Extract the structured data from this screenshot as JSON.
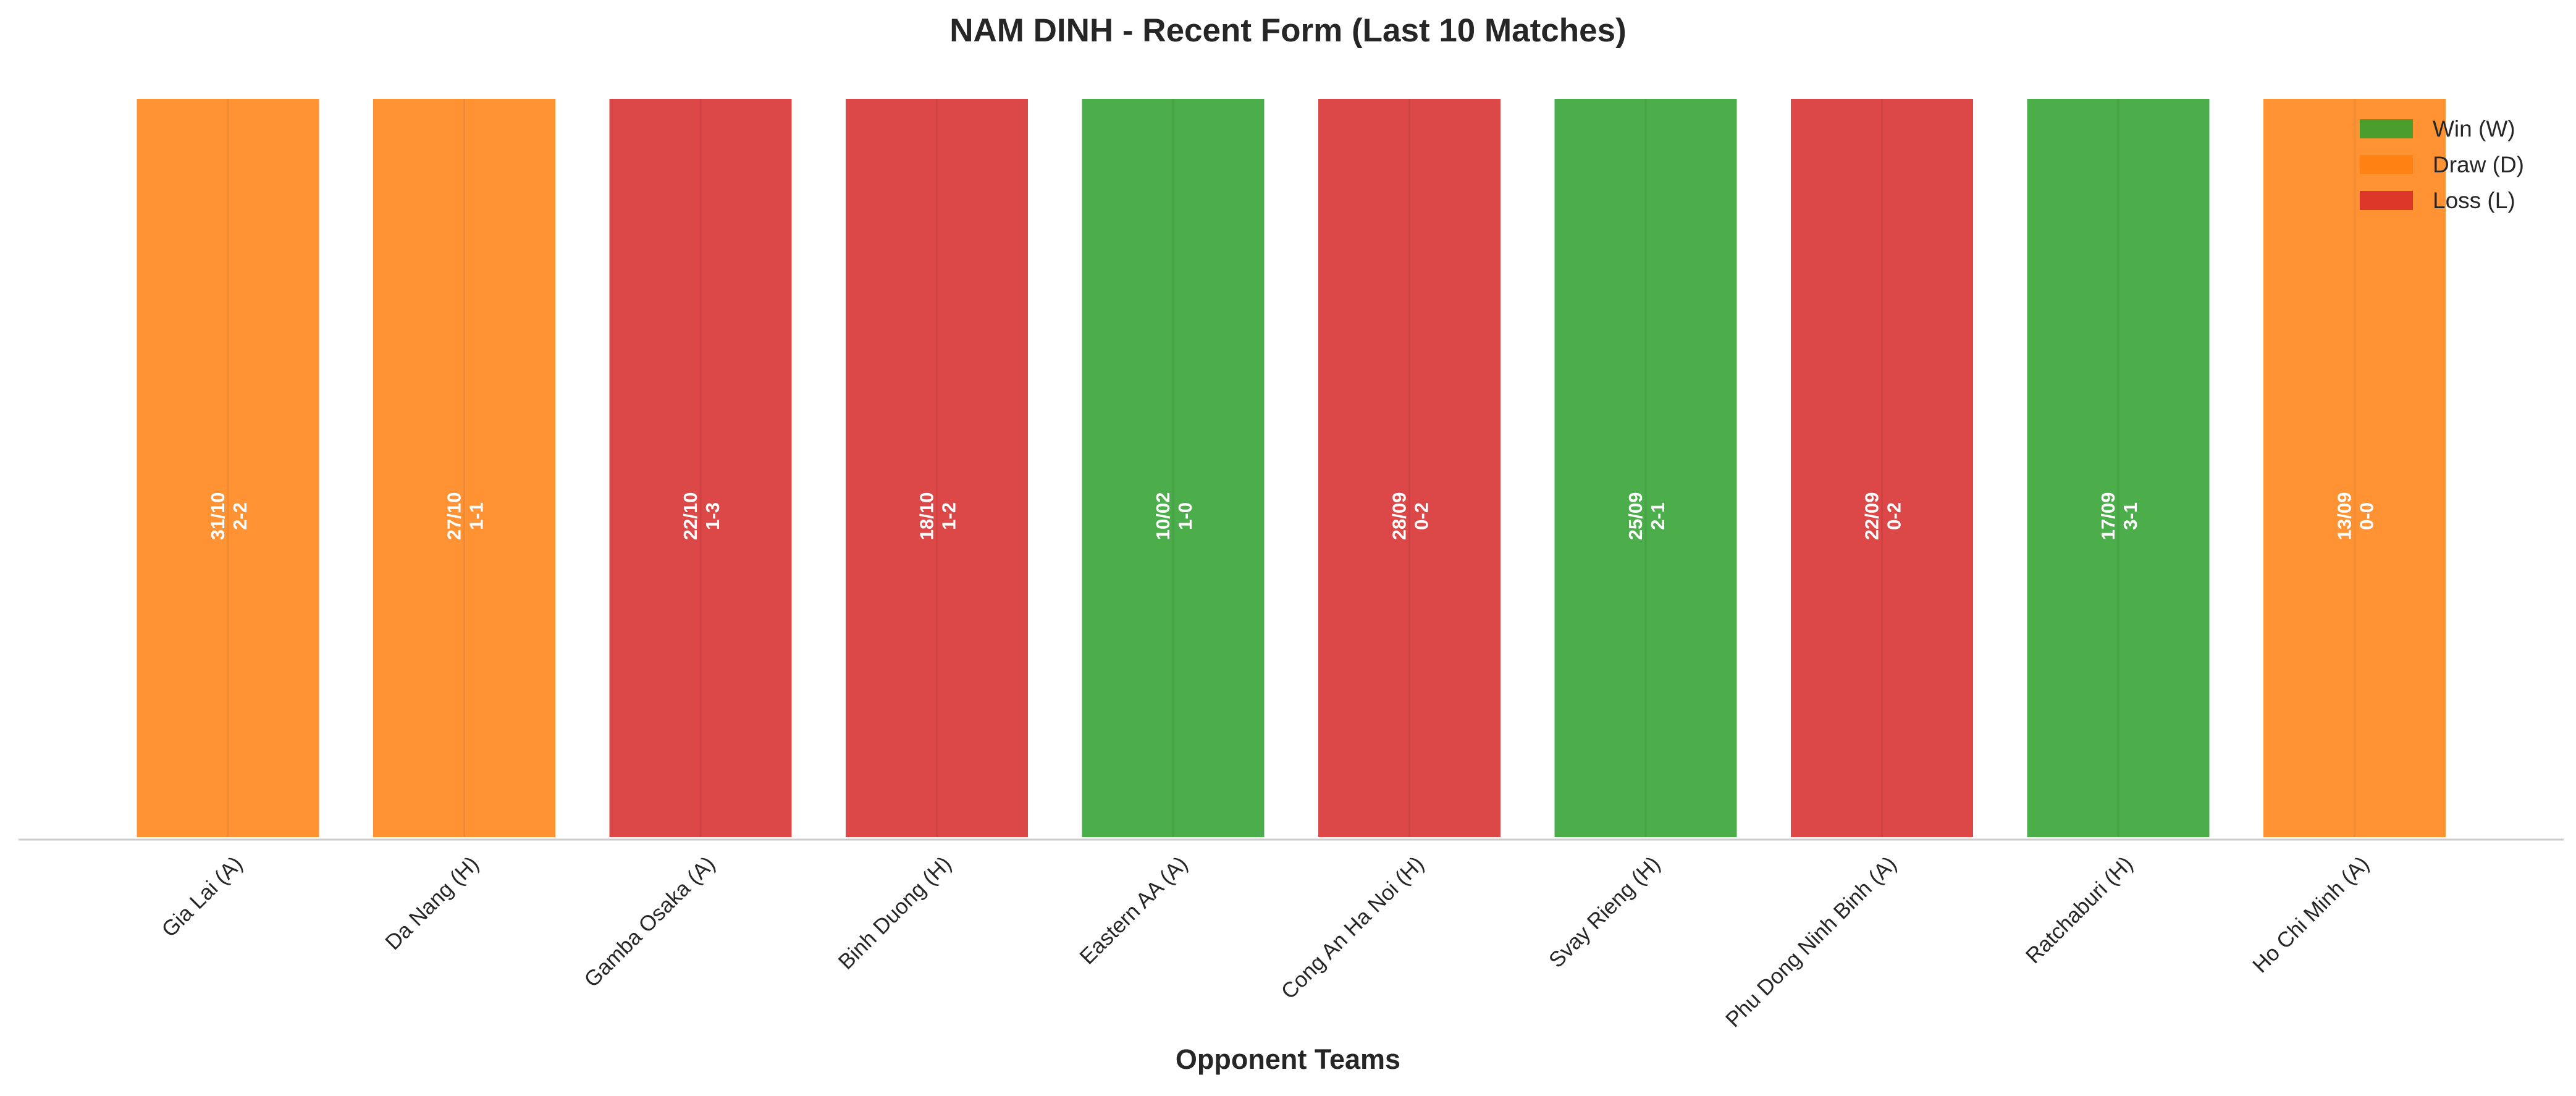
{
  "chart_data": {
    "type": "bar",
    "title": "NAM DINH - Recent Form (Last 10 Matches)",
    "xlabel": "Opponent Teams",
    "ylabel": "",
    "ylim": [
      0,
      1
    ],
    "grid": false,
    "legend_position": "top-right",
    "categories": [
      "Gia Lai (A)",
      "Da Nang (H)",
      "Gamba Osaka (A)",
      "Binh Duong (H)",
      "Eastern AA (A)",
      "Cong An Ha Noi (H)",
      "Svay Rieng (H)",
      "Phu Dong Ninh Binh (A)",
      "Ratchaburi (H)",
      "Ho Chi Minh (A)"
    ],
    "values": [
      1,
      1,
      1,
      1,
      1,
      1,
      1,
      1,
      1,
      1
    ],
    "results": [
      "D",
      "D",
      "L",
      "L",
      "W",
      "L",
      "W",
      "L",
      "W",
      "D"
    ],
    "dates": [
      "31/10",
      "27/10",
      "22/10",
      "18/10",
      "10/02",
      "28/09",
      "25/09",
      "22/09",
      "17/09",
      "13/09"
    ],
    "scores": [
      "2-2",
      "1-1",
      "1-3",
      "1-2",
      "1-0",
      "0-2",
      "2-1",
      "0-2",
      "3-1",
      "0-0"
    ],
    "legend": [
      {
        "key": "W",
        "label": "Win (W)",
        "color": "#2ca02c"
      },
      {
        "key": "D",
        "label": "Draw (D)",
        "color": "#ff7f0e"
      },
      {
        "key": "L",
        "label": "Loss (L)",
        "color": "#d62728"
      }
    ]
  }
}
